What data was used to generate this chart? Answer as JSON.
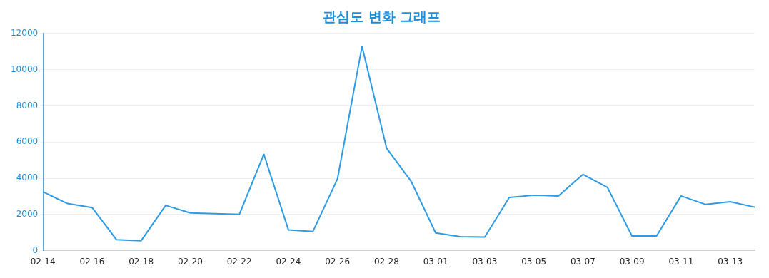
{
  "chart_data": {
    "type": "line",
    "title": "관심도 변화 그래프",
    "categories": [
      "02-14",
      null,
      "02-16",
      null,
      "02-18",
      null,
      "02-20",
      null,
      "02-22",
      null,
      "02-24",
      null,
      "02-26",
      null,
      "02-28",
      null,
      "03-01",
      null,
      "03-03",
      null,
      "03-05",
      null,
      "03-07",
      null,
      "03-09",
      null,
      "03-11",
      null,
      "03-13",
      null
    ],
    "series": [
      {
        "color": "#2d9be3",
        "values": [
          3250,
          2600,
          2380,
          600,
          550,
          2500,
          2080,
          2040,
          2000,
          5320,
          1150,
          1060,
          3960,
          11280,
          5660,
          3830,
          980,
          770,
          750,
          2940,
          3060,
          3020,
          4210,
          3490,
          810,
          810,
          3020,
          2550,
          2700,
          2400
        ]
      }
    ],
    "ylim": [
      0,
      12000
    ],
    "yticks": [
      0,
      2000,
      4000,
      6000,
      8000,
      10000,
      12000
    ],
    "grid": "y",
    "legend": false,
    "marker": "none",
    "line_style": "solid"
  }
}
